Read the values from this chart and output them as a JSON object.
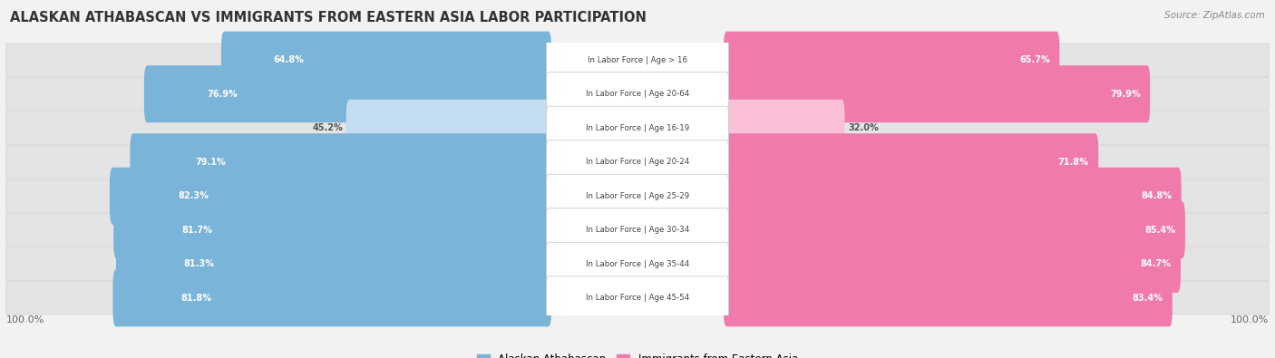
{
  "title": "ALASKAN ATHABASCAN VS IMMIGRANTS FROM EASTERN ASIA LABOR PARTICIPATION",
  "source": "Source: ZipAtlas.com",
  "categories": [
    "In Labor Force | Age > 16",
    "In Labor Force | Age 20-64",
    "In Labor Force | Age 16-19",
    "In Labor Force | Age 20-24",
    "In Labor Force | Age 25-29",
    "In Labor Force | Age 30-34",
    "In Labor Force | Age 35-44",
    "In Labor Force | Age 45-54"
  ],
  "left_values": [
    64.8,
    76.9,
    45.2,
    79.1,
    82.3,
    81.7,
    81.3,
    81.8
  ],
  "right_values": [
    65.7,
    79.9,
    32.0,
    71.8,
    84.8,
    85.4,
    84.7,
    83.4
  ],
  "left_label": "Alaskan Athabascan",
  "right_label": "Immigrants from Eastern Asia",
  "left_color": "#7ab4d8",
  "right_color": "#f07aab",
  "left_color_light": "#c5ddf0",
  "right_color_light": "#f9c0d8",
  "row_bg": "#e8e8e8",
  "background_color": "#f2f2f2",
  "max_value": 100.0
}
